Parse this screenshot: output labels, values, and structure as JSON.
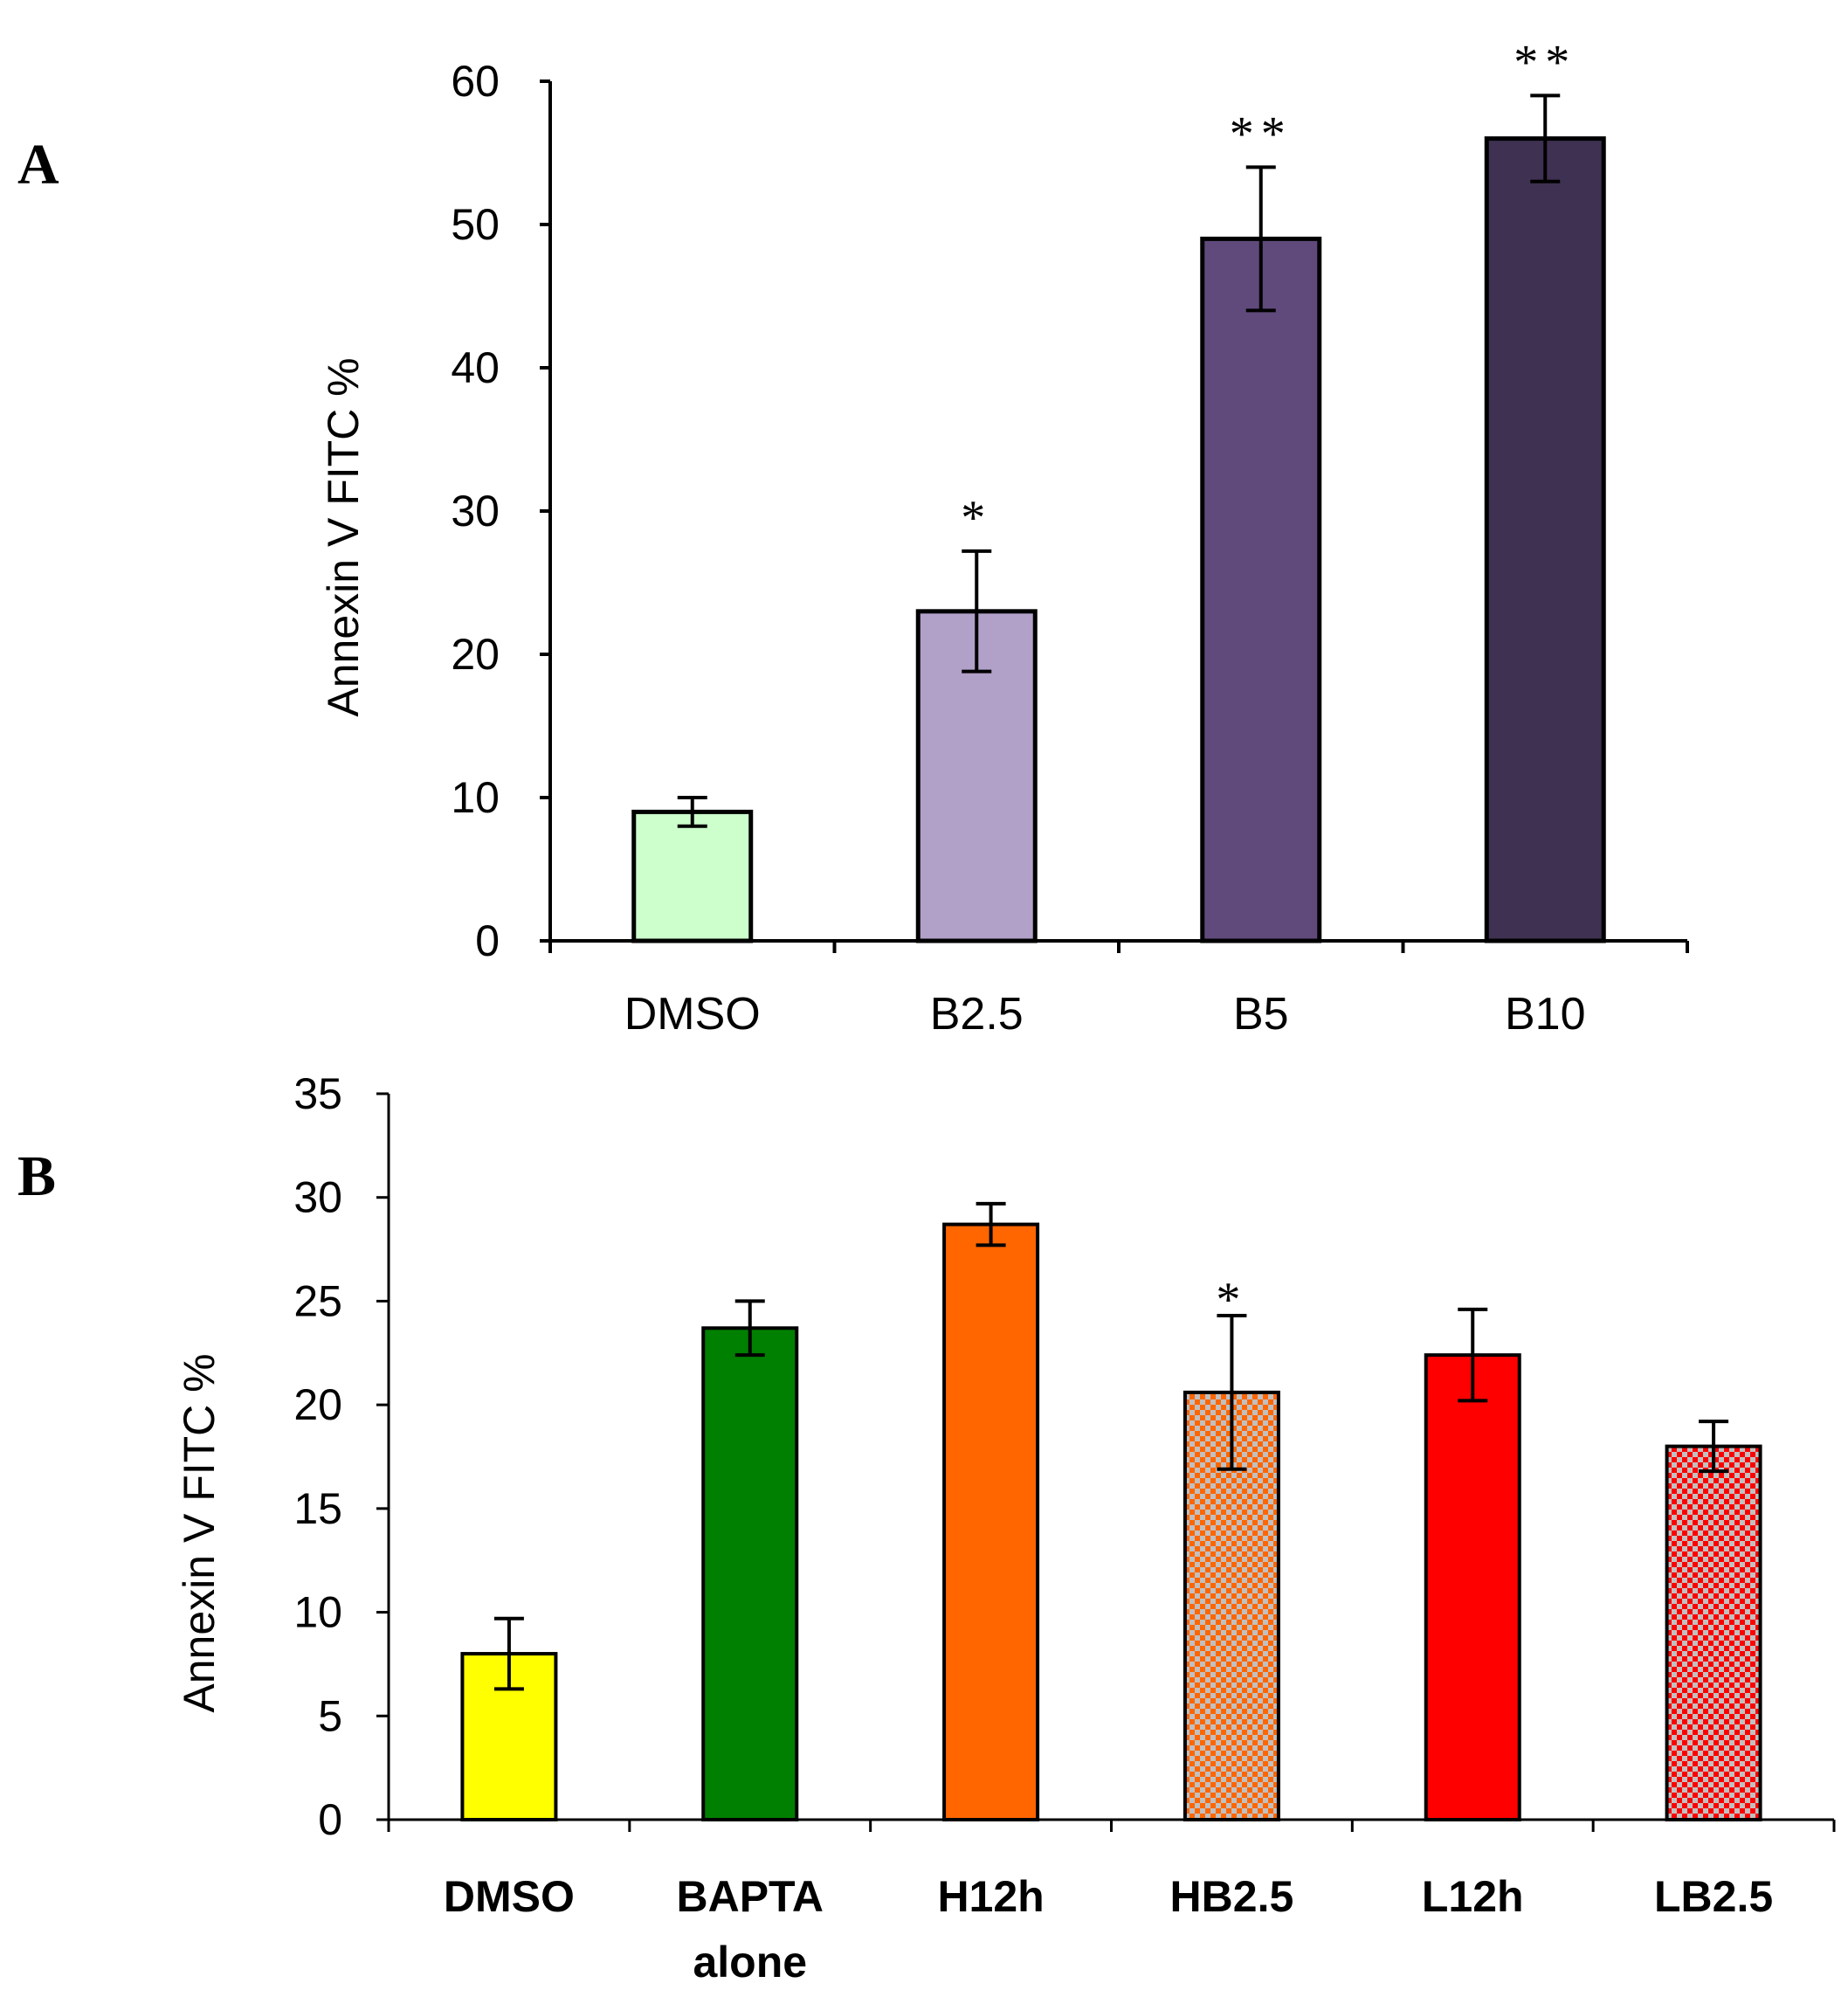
{
  "chart_data": [
    {
      "panel": "A",
      "type": "bar",
      "ylabel": "Annexin V FITC %",
      "ylim": [
        0,
        60
      ],
      "yticks": [
        0,
        10,
        20,
        30,
        40,
        50,
        60
      ],
      "categories": [
        [
          "DMSO"
        ],
        [
          "B2.5"
        ],
        [
          "B5"
        ],
        [
          "B10"
        ]
      ],
      "values": [
        9,
        23,
        49,
        56
      ],
      "errors": [
        1,
        4.2,
        5,
        3
      ],
      "significance": [
        "",
        "*",
        "**",
        "**"
      ],
      "colors": [
        "#ccffcc",
        "#b1a0c7",
        "#604a7b",
        "#3f3151"
      ]
    },
    {
      "panel": "B",
      "type": "bar",
      "ylabel": "Annexin V FITC %",
      "ylim": [
        0,
        35
      ],
      "yticks": [
        0,
        5,
        10,
        15,
        20,
        25,
        30,
        35
      ],
      "categories": [
        [
          "DMSO"
        ],
        [
          "BAPTA",
          "alone"
        ],
        [
          "H12h"
        ],
        [
          "HB2.5"
        ],
        [
          "L12h"
        ],
        [
          "LB2.5"
        ]
      ],
      "values": [
        8,
        23.7,
        28.7,
        20.6,
        22.4,
        18
      ],
      "errors": [
        1.7,
        1.3,
        1,
        3.7,
        2.2,
        1.2
      ],
      "significance": [
        "",
        "",
        "",
        "*",
        "",
        ""
      ],
      "colors": [
        "#ffff00",
        "#008000",
        "#ff6600",
        "#ff6600",
        "#ff0000",
        "#ff0000"
      ],
      "patterns": [
        "solid",
        "solid",
        "solid",
        "checker",
        "solid",
        "checker"
      ]
    }
  ]
}
